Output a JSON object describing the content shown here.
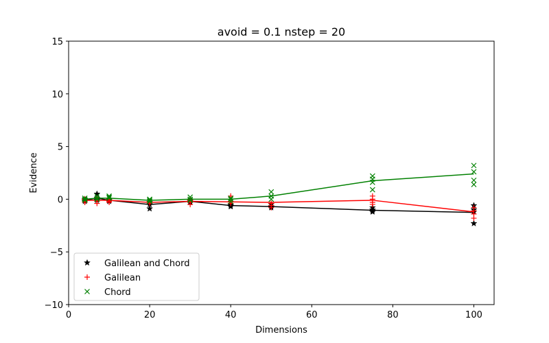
{
  "chart_data": {
    "type": "scatter",
    "title": "avoid = 0.1  nstep = 20",
    "xlabel": "Dimensions",
    "ylabel": "Evidence",
    "xlim": [
      0,
      105
    ],
    "ylim": [
      -10,
      15
    ],
    "xticks": [
      0,
      20,
      40,
      60,
      80,
      100
    ],
    "yticks": [
      -10,
      -5,
      0,
      5,
      10,
      15
    ],
    "legend_position": "lower-left",
    "series": [
      {
        "name": "Galilean and Chord",
        "color": "#000000",
        "marker": "star",
        "points": [
          {
            "x": 4,
            "y": -0.1
          },
          {
            "x": 4,
            "y": -0.2
          },
          {
            "x": 4,
            "y": 0.0
          },
          {
            "x": 7,
            "y": 0.5
          },
          {
            "x": 7,
            "y": 0.1
          },
          {
            "x": 7,
            "y": -0.1
          },
          {
            "x": 10,
            "y": -0.2
          },
          {
            "x": 10,
            "y": 0.0
          },
          {
            "x": 10,
            "y": -0.1
          },
          {
            "x": 20,
            "y": -0.9
          },
          {
            "x": 20,
            "y": -0.5
          },
          {
            "x": 20,
            "y": -0.3
          },
          {
            "x": 30,
            "y": -0.3
          },
          {
            "x": 30,
            "y": -0.1
          },
          {
            "x": 30,
            "y": -0.2
          },
          {
            "x": 40,
            "y": -0.7
          },
          {
            "x": 40,
            "y": -0.5
          },
          {
            "x": 40,
            "y": -0.6
          },
          {
            "x": 50,
            "y": -0.5
          },
          {
            "x": 50,
            "y": -0.8
          },
          {
            "x": 50,
            "y": -0.7
          },
          {
            "x": 75,
            "y": -0.8
          },
          {
            "x": 75,
            "y": -1.0
          },
          {
            "x": 75,
            "y": -1.2
          },
          {
            "x": 75,
            "y": -1.1
          },
          {
            "x": 100,
            "y": -0.6
          },
          {
            "x": 100,
            "y": -1.2
          },
          {
            "x": 100,
            "y": -2.3
          },
          {
            "x": 100,
            "y": -1.0
          }
        ],
        "line": [
          {
            "x": 4,
            "y": -0.1
          },
          {
            "x": 7,
            "y": 0.1
          },
          {
            "x": 10,
            "y": -0.1
          },
          {
            "x": 20,
            "y": -0.5
          },
          {
            "x": 30,
            "y": -0.2
          },
          {
            "x": 40,
            "y": -0.6
          },
          {
            "x": 50,
            "y": -0.7
          },
          {
            "x": 75,
            "y": -1.05
          },
          {
            "x": 100,
            "y": -1.25
          }
        ]
      },
      {
        "name": "Galilean",
        "color": "#ff0000",
        "marker": "plus",
        "points": [
          {
            "x": 4,
            "y": -0.2
          },
          {
            "x": 4,
            "y": -0.3
          },
          {
            "x": 4,
            "y": 0.0
          },
          {
            "x": 7,
            "y": -0.4
          },
          {
            "x": 7,
            "y": -0.2
          },
          {
            "x": 7,
            "y": 0.1
          },
          {
            "x": 10,
            "y": -0.3
          },
          {
            "x": 10,
            "y": 0.0
          },
          {
            "x": 10,
            "y": -0.2
          },
          {
            "x": 20,
            "y": -0.4
          },
          {
            "x": 20,
            "y": -0.2
          },
          {
            "x": 20,
            "y": -0.3
          },
          {
            "x": 30,
            "y": -0.5
          },
          {
            "x": 30,
            "y": -0.1
          },
          {
            "x": 30,
            "y": -0.3
          },
          {
            "x": 40,
            "y": 0.3
          },
          {
            "x": 40,
            "y": -0.2
          },
          {
            "x": 40,
            "y": -0.4
          },
          {
            "x": 50,
            "y": -0.6
          },
          {
            "x": 50,
            "y": -0.8
          },
          {
            "x": 50,
            "y": -0.4
          },
          {
            "x": 75,
            "y": 0.3
          },
          {
            "x": 75,
            "y": -0.5
          },
          {
            "x": 75,
            "y": -0.3
          },
          {
            "x": 75,
            "y": 0.0
          },
          {
            "x": 100,
            "y": -0.8
          },
          {
            "x": 100,
            "y": -1.8
          },
          {
            "x": 100,
            "y": -1.1
          },
          {
            "x": 100,
            "y": -1.4
          }
        ],
        "line": [
          {
            "x": 4,
            "y": -0.1
          },
          {
            "x": 7,
            "y": -0.1
          },
          {
            "x": 10,
            "y": -0.1
          },
          {
            "x": 20,
            "y": -0.3
          },
          {
            "x": 30,
            "y": -0.2
          },
          {
            "x": 40,
            "y": -0.25
          },
          {
            "x": 50,
            "y": -0.3
          },
          {
            "x": 75,
            "y": -0.1
          },
          {
            "x": 100,
            "y": -1.2
          }
        ]
      },
      {
        "name": "Chord",
        "color": "#008000",
        "marker": "x",
        "points": [
          {
            "x": 4,
            "y": 0.0
          },
          {
            "x": 4,
            "y": 0.1
          },
          {
            "x": 4,
            "y": -0.1
          },
          {
            "x": 7,
            "y": 0.3
          },
          {
            "x": 7,
            "y": 0.1
          },
          {
            "x": 7,
            "y": 0.0
          },
          {
            "x": 10,
            "y": 0.3
          },
          {
            "x": 10,
            "y": 0.1
          },
          {
            "x": 10,
            "y": 0.2
          },
          {
            "x": 20,
            "y": 0.0
          },
          {
            "x": 20,
            "y": -0.2
          },
          {
            "x": 20,
            "y": -0.1
          },
          {
            "x": 30,
            "y": 0.2
          },
          {
            "x": 30,
            "y": 0.0
          },
          {
            "x": 30,
            "y": -0.1
          },
          {
            "x": 40,
            "y": 0.0
          },
          {
            "x": 40,
            "y": -0.2
          },
          {
            "x": 40,
            "y": 0.1
          },
          {
            "x": 50,
            "y": 0.7
          },
          {
            "x": 50,
            "y": 0.3
          },
          {
            "x": 50,
            "y": 0.0
          },
          {
            "x": 75,
            "y": 2.2
          },
          {
            "x": 75,
            "y": 1.6
          },
          {
            "x": 75,
            "y": 0.9
          },
          {
            "x": 75,
            "y": 1.9
          },
          {
            "x": 100,
            "y": 3.2
          },
          {
            "x": 100,
            "y": 2.6
          },
          {
            "x": 100,
            "y": 1.8
          },
          {
            "x": 100,
            "y": 1.4
          }
        ],
        "line": [
          {
            "x": 4,
            "y": 0.0
          },
          {
            "x": 7,
            "y": 0.1
          },
          {
            "x": 10,
            "y": 0.1
          },
          {
            "x": 20,
            "y": -0.1
          },
          {
            "x": 30,
            "y": 0.0
          },
          {
            "x": 40,
            "y": 0.0
          },
          {
            "x": 50,
            "y": 0.3
          },
          {
            "x": 75,
            "y": 1.75
          },
          {
            "x": 100,
            "y": 2.4
          }
        ]
      }
    ]
  }
}
